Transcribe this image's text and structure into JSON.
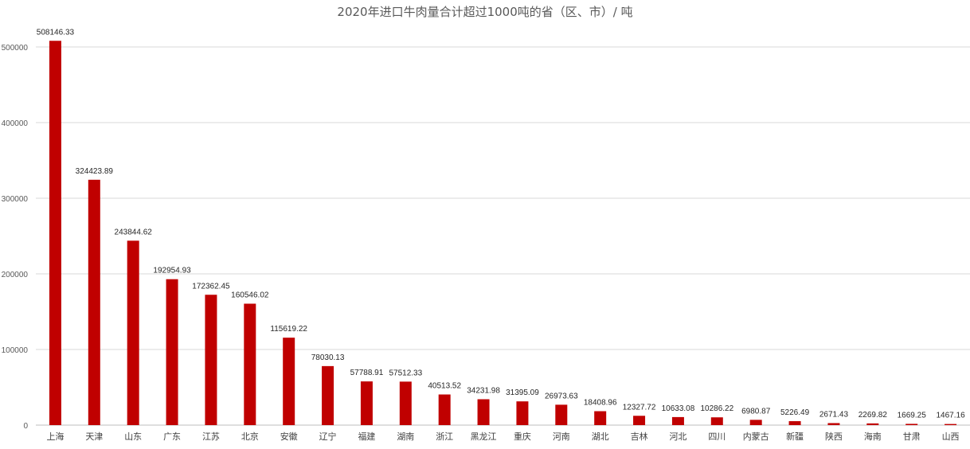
{
  "chart_data": {
    "type": "bar",
    "title": "2020年进口牛肉量合计超过1000吨的省（区、市）/ 吨",
    "xlabel": "",
    "ylabel": "",
    "ylim": [
      0,
      500000
    ],
    "y_ticks": [
      "0",
      "100000",
      "200000",
      "300000",
      "400000",
      "500000"
    ],
    "grid": true,
    "bar_color": "#C00000",
    "categories": [
      "上海",
      "天津",
      "山东",
      "广东",
      "江苏",
      "北京",
      "安徽",
      "辽宁",
      "福建",
      "湖南",
      "浙江",
      "黑龙江",
      "重庆",
      "河南",
      "湖北",
      "吉林",
      "河北",
      "四川",
      "内蒙古",
      "新疆",
      "陕西",
      "海南",
      "甘肃",
      "山西"
    ],
    "values": [
      508146.33,
      324423.89,
      243844.62,
      192954.93,
      172362.45,
      160546.02,
      115619.22,
      78030.13,
      57788.91,
      57512.33,
      40513.52,
      34231.98,
      31395.09,
      26973.63,
      18408.96,
      12327.72,
      10633.08,
      10286.22,
      6980.87,
      5226.49,
      2671.43,
      2269.82,
      1669.25,
      1467.16
    ],
    "data_labels": [
      "508146.33",
      "324423.89",
      "243844.62",
      "192954.93",
      "172362.45",
      "160546.02",
      "115619.22",
      "78030.13",
      "57788.91",
      "57512.33",
      "40513.52",
      "34231.98",
      "31395.09",
      "26973.63",
      "18408.96",
      "12327.72",
      "10633.08",
      "10286.22",
      "6980.87",
      "5226.49",
      "2671.43",
      "2269.82",
      "1669.25",
      "1467.16"
    ]
  }
}
